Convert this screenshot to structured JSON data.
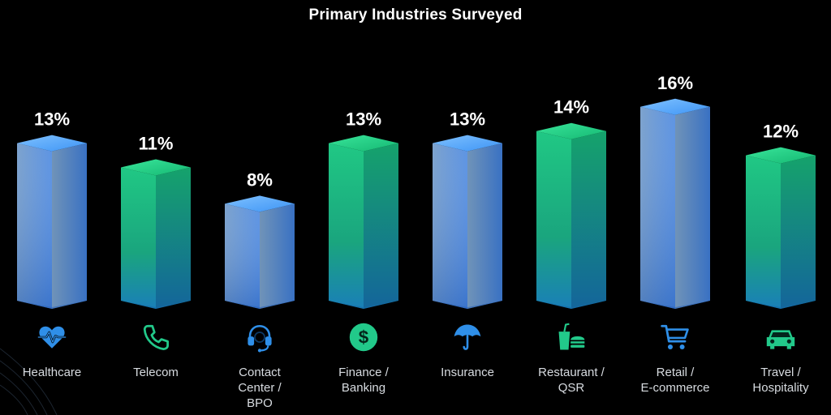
{
  "chart_data": {
    "type": "bar",
    "title": "Primary Industries Surveyed",
    "categories": [
      "Healthcare",
      "Telecom",
      "Contact\nCenter /\nBPO",
      "Finance /\nBanking",
      "Insurance",
      "Restaurant /\nQSR",
      "Retail /\nE-commerce",
      "Travel /\nHospitality"
    ],
    "values": [
      13,
      11,
      8,
      13,
      13,
      14,
      16,
      12
    ],
    "value_labels": [
      "13%",
      "11%",
      "8%",
      "13%",
      "13%",
      "14%",
      "16%",
      "12%"
    ],
    "icons": [
      "heartbeat-icon",
      "phone-icon",
      "headset-icon",
      "dollar-icon",
      "umbrella-icon",
      "food-drink-icon",
      "shopping-cart-icon",
      "car-icon"
    ],
    "bar_styles": [
      "blue",
      "green",
      "blue",
      "green",
      "blue",
      "green",
      "blue",
      "green"
    ],
    "colors": {
      "background": "#000000",
      "blue_top": "#4fa3ff",
      "blue_face": "#6f99c9",
      "green_top": "#22c98a",
      "green_face": "#18b37a",
      "icon_blue": "#2f8fe8",
      "icon_green": "#22c98a"
    },
    "ylim": [
      0,
      16
    ],
    "grid": false,
    "legend": "none"
  }
}
